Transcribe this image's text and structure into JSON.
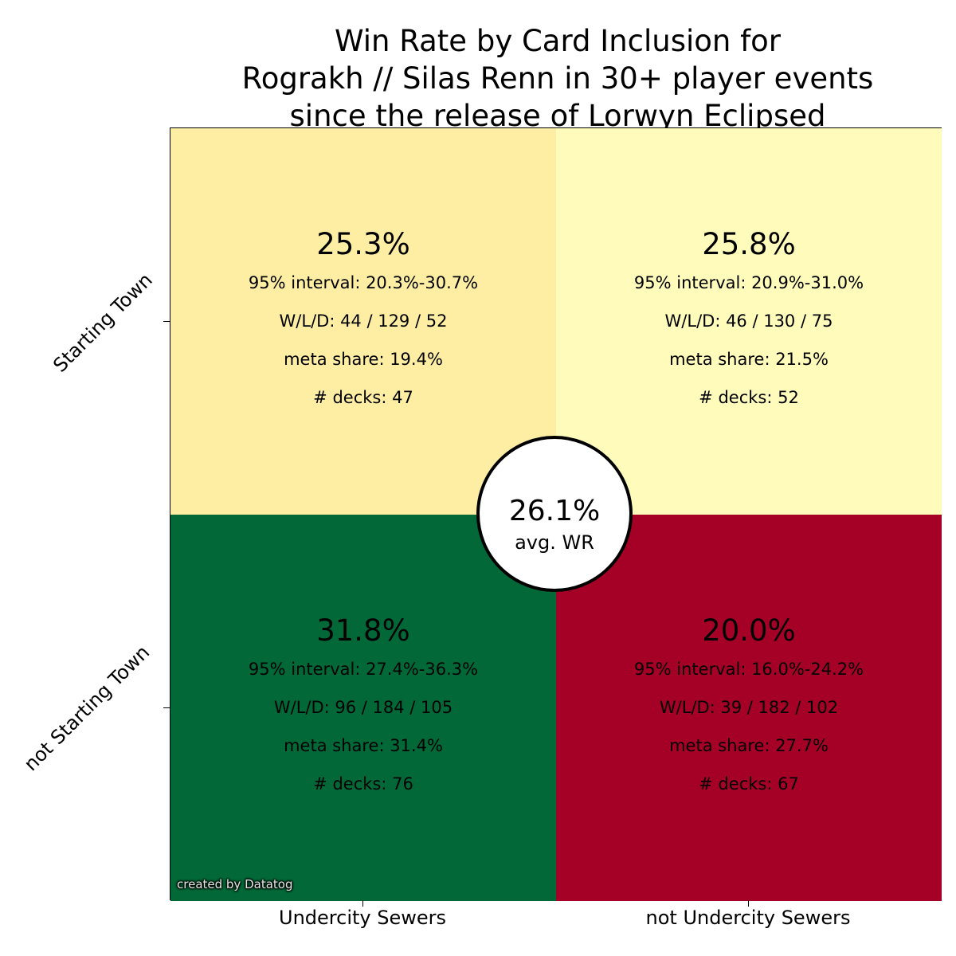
{
  "title_lines": [
    "Win Rate by Card Inclusion for",
    "Rograkh // Silas Renn in 30+ player events",
    "since the release of Lorwyn Eclipsed"
  ],
  "chart_data": {
    "type": "heatmap",
    "title": "Win Rate by Card Inclusion for Rograkh // Silas Renn in 30+ player events since the release of Lorwyn Eclipsed",
    "x_categories": [
      "Undercity Sewers",
      "not Undercity Sewers"
    ],
    "y_categories": [
      "Starting Town",
      "not Starting Town"
    ],
    "cells": [
      {
        "row": 0,
        "col": 0,
        "win_rate": 25.3,
        "win_rate_label": "25.3%",
        "interval": "95% interval: 20.3%-30.7%",
        "wld": "W/L/D: 44 / 129 / 52",
        "meta": "meta share: 19.4%",
        "decks": "# decks: 47",
        "color": "#fdeea4"
      },
      {
        "row": 0,
        "col": 1,
        "win_rate": 25.8,
        "win_rate_label": "25.8%",
        "interval": "95% interval: 20.9%-31.0%",
        "wld": "W/L/D: 46 / 130 / 75",
        "meta": "meta share: 21.5%",
        "decks": "# decks: 52",
        "color": "#fefbbb"
      },
      {
        "row": 1,
        "col": 0,
        "win_rate": 31.8,
        "win_rate_label": "31.8%",
        "interval": "95% interval: 27.4%-36.3%",
        "wld": "W/L/D: 96 / 184 / 105",
        "meta": "meta share: 31.4%",
        "decks": "# decks: 76",
        "color": "#026837"
      },
      {
        "row": 1,
        "col": 1,
        "win_rate": 20.0,
        "win_rate_label": "20.0%",
        "interval": "95% interval: 16.0%-24.2%",
        "wld": "W/L/D: 39 / 182 / 102",
        "meta": "meta share: 27.7%",
        "decks": "# decks: 67",
        "color": "#a50026"
      }
    ],
    "average": {
      "value": 26.1,
      "value_label": "26.1%",
      "label": "avg. WR"
    }
  },
  "credit": "created by Datatog"
}
